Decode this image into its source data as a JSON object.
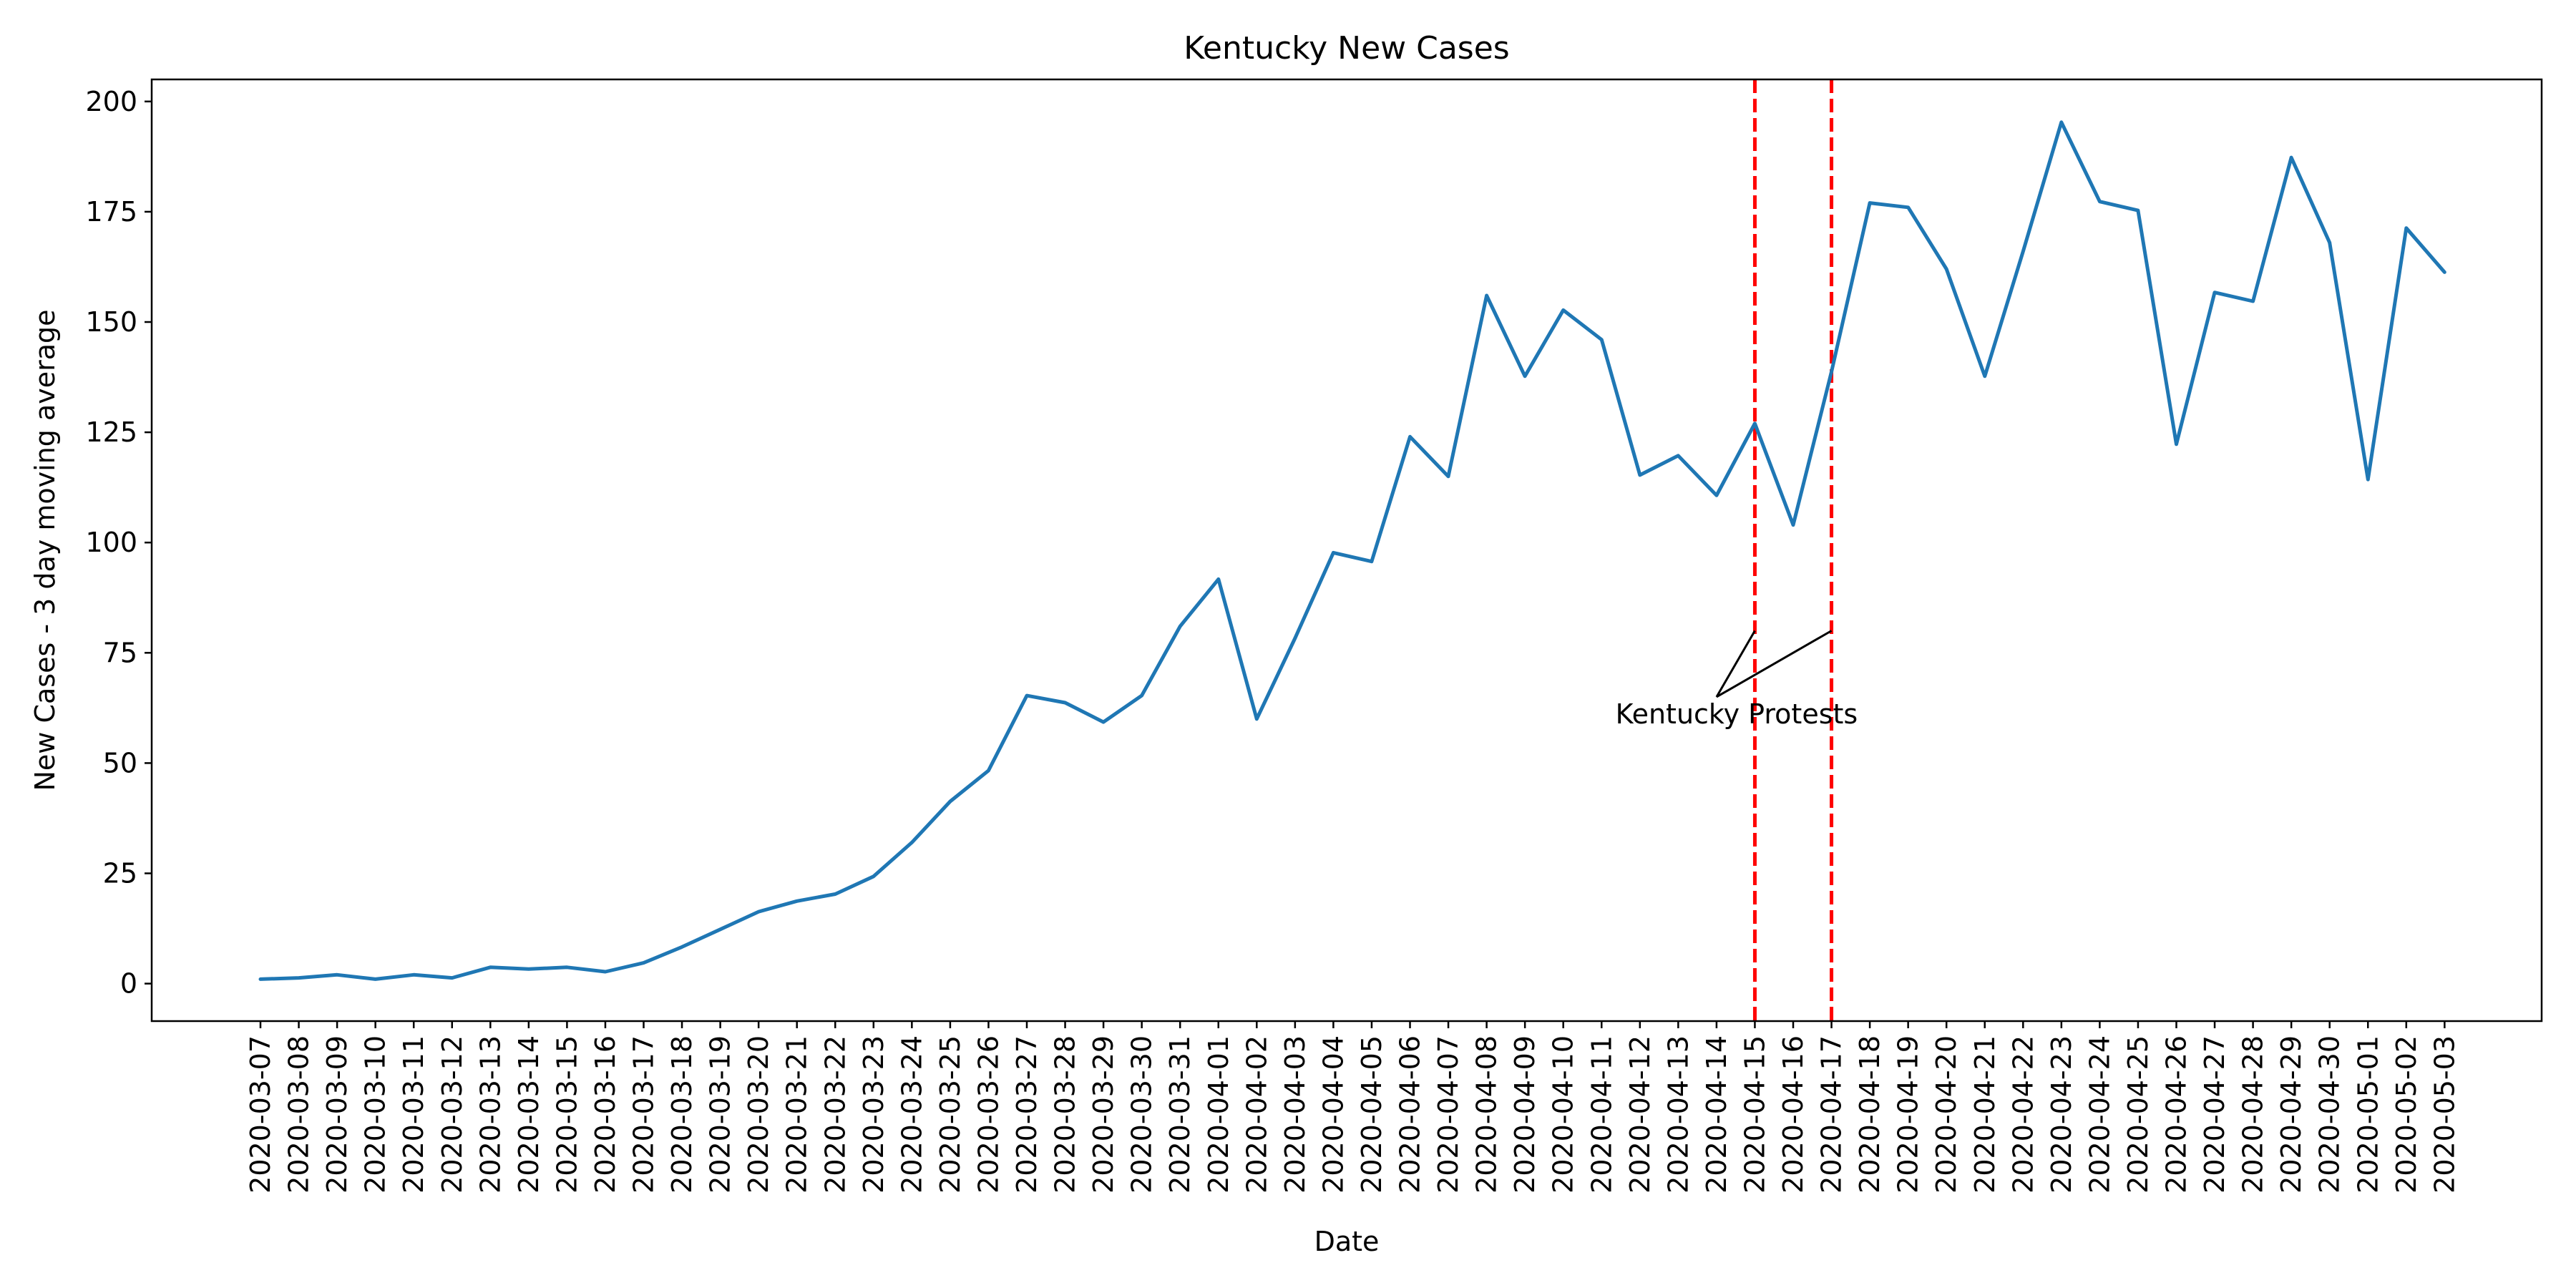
{
  "chart_data": {
    "type": "line",
    "title": "Kentucky New Cases",
    "xlabel": "Date",
    "ylabel": "New Cases - 3 day moving average",
    "x": [
      "2020-03-07",
      "2020-03-08",
      "2020-03-09",
      "2020-03-10",
      "2020-03-11",
      "2020-03-12",
      "2020-03-13",
      "2020-03-14",
      "2020-03-15",
      "2020-03-16",
      "2020-03-17",
      "2020-03-18",
      "2020-03-19",
      "2020-03-20",
      "2020-03-21",
      "2020-03-22",
      "2020-03-23",
      "2020-03-24",
      "2020-03-25",
      "2020-03-26",
      "2020-03-27",
      "2020-03-28",
      "2020-03-29",
      "2020-03-30",
      "2020-03-31",
      "2020-04-01",
      "2020-04-02",
      "2020-04-03",
      "2020-04-04",
      "2020-04-05",
      "2020-04-06",
      "2020-04-07",
      "2020-04-08",
      "2020-04-09",
      "2020-04-10",
      "2020-04-11",
      "2020-04-12",
      "2020-04-13",
      "2020-04-14",
      "2020-04-15",
      "2020-04-16",
      "2020-04-17",
      "2020-04-18",
      "2020-04-19",
      "2020-04-20",
      "2020-04-21",
      "2020-04-22",
      "2020-04-23",
      "2020-04-24",
      "2020-04-25",
      "2020-04-26",
      "2020-04-27",
      "2020-04-28",
      "2020-04-29",
      "2020-04-30",
      "2020-05-01",
      "2020-05-02",
      "2020-05-03"
    ],
    "values": [
      1.0,
      1.3,
      2.0,
      1.0,
      2.0,
      1.3,
      3.7,
      3.3,
      3.7,
      2.7,
      4.7,
      8.3,
      12.3,
      16.3,
      18.7,
      20.3,
      24.3,
      32.0,
      41.3,
      48.3,
      65.3,
      63.7,
      59.3,
      65.3,
      81.0,
      91.7,
      60.0,
      78.3,
      97.7,
      95.7,
      124.0,
      115.0,
      156.0,
      137.7,
      152.7,
      146.0,
      115.3,
      119.7,
      110.7,
      127.0,
      104.0,
      138.7,
      177.0,
      176.0,
      162.0,
      137.7,
      166.0,
      195.3,
      177.3,
      175.3,
      122.3,
      156.7,
      154.7,
      187.3,
      168.0,
      114.3,
      171.3,
      161.3
    ],
    "ylim": [
      -8.5,
      205
    ],
    "yticks": [
      0,
      25,
      50,
      75,
      100,
      125,
      150,
      175,
      200
    ],
    "grid": false,
    "line_color": "#1f77b4",
    "vlines": [
      {
        "x": "2020-04-15",
        "color": "#ff0000",
        "style": "dashed"
      },
      {
        "x": "2020-04-17",
        "color": "#ff0000",
        "style": "dashed"
      }
    ],
    "annotations": [
      {
        "text": "Kentucky Protests",
        "text_at": {
          "x": "2020-04-14",
          "y": 65
        },
        "arrows_to": [
          {
            "x": "2020-04-15",
            "y": 80
          },
          {
            "x": "2020-04-17",
            "y": 80
          }
        ]
      }
    ]
  }
}
